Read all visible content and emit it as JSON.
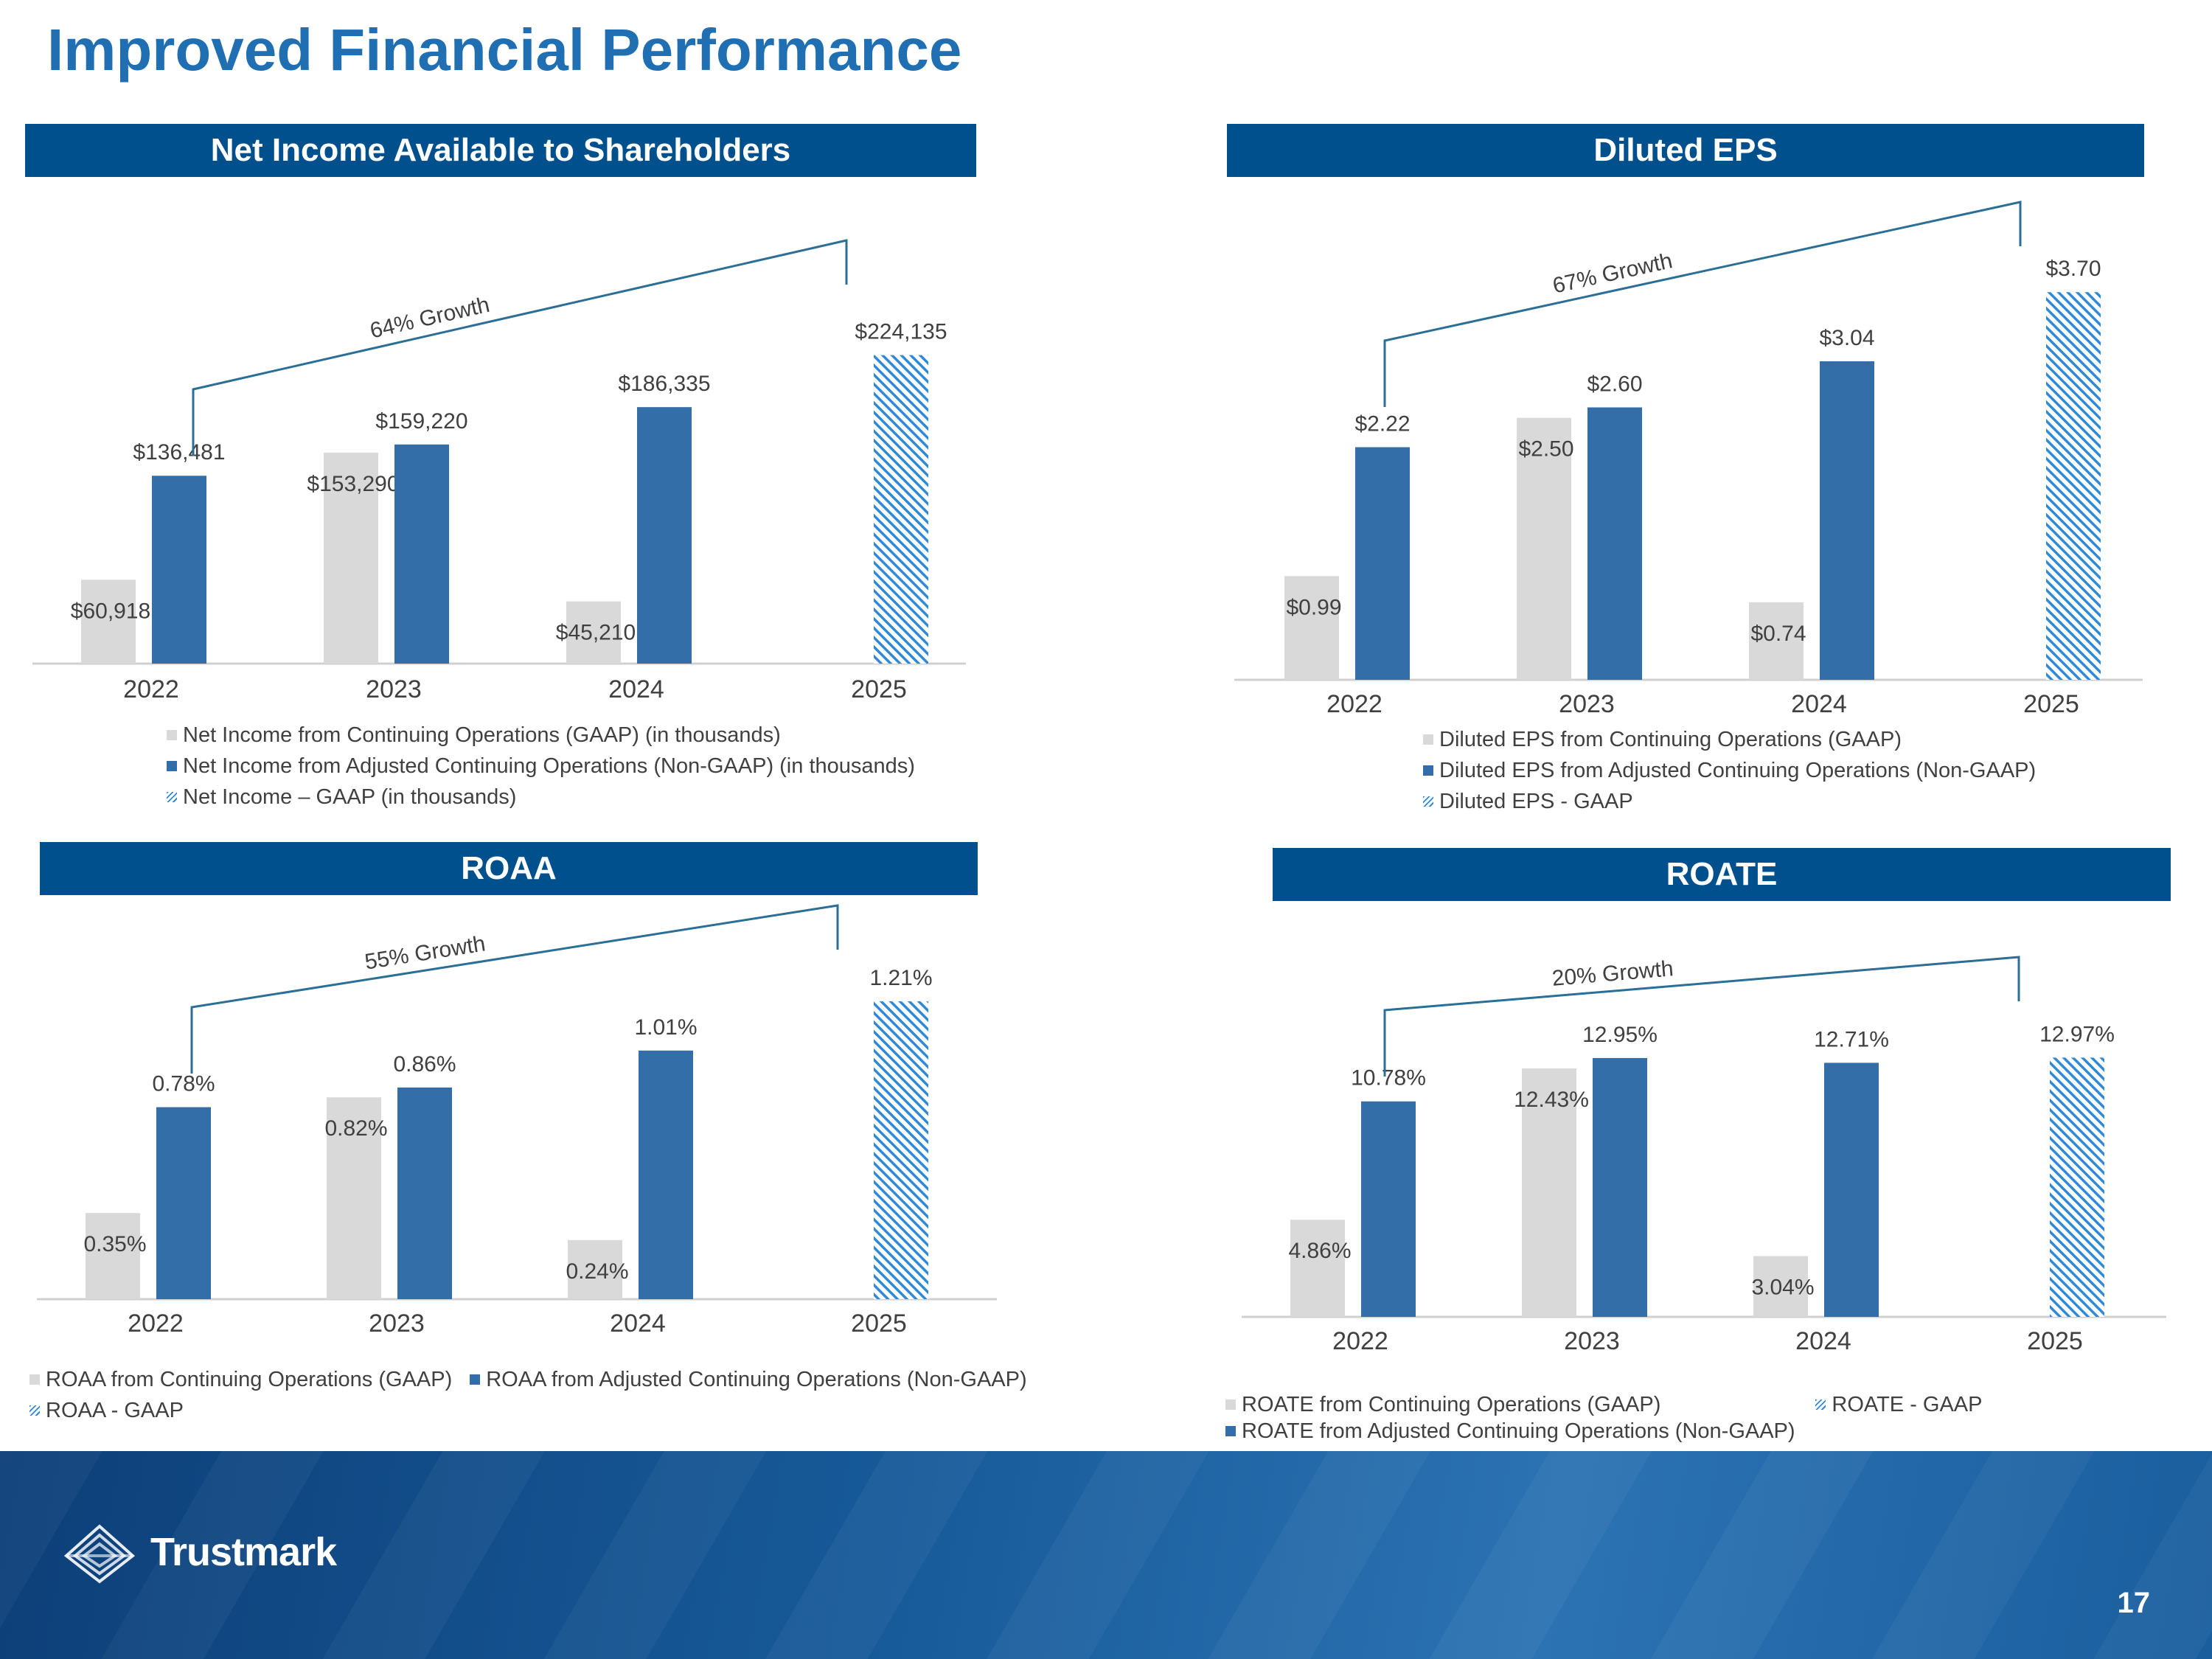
{
  "page": {
    "title": "Improved Financial Performance",
    "page_number": "17",
    "logo_text": "Trustmark"
  },
  "colors": {
    "header": "#00508e",
    "gaap": "#d9d9d9",
    "non_gaap": "#336ea8",
    "hatch": "#2e8ad8",
    "growth_line": "#2b6f96"
  },
  "chart_data": [
    {
      "type": "bar",
      "title": "Net Income Available to Shareholders",
      "categories": [
        "2022",
        "2023",
        "2024",
        "2025"
      ],
      "growth_label": "64% Growth",
      "ylim": [
        0,
        240000
      ],
      "series": [
        {
          "name": "Net Income from Continuing Operations (GAAP) (in thousands)",
          "style": "grey",
          "values": [
            60918,
            153290,
            45210,
            null
          ],
          "labels": [
            "$60,918",
            "$153,290",
            "$45,210",
            null
          ]
        },
        {
          "name": "Net Income from Adjusted Continuing Operations (Non-GAAP) (in thousands)",
          "style": "blue",
          "values": [
            136481,
            159220,
            186335,
            null
          ],
          "labels": [
            "$136,481",
            "$159,220",
            "$186,335",
            null
          ]
        },
        {
          "name": "Net Income – GAAP (in thousands)",
          "style": "hatch",
          "values": [
            null,
            null,
            null,
            224135
          ],
          "labels": [
            null,
            null,
            null,
            "$224,135"
          ]
        }
      ]
    },
    {
      "type": "bar",
      "title": "Diluted EPS",
      "categories": [
        "2022",
        "2023",
        "2024",
        "2025"
      ],
      "growth_label": "67% Growth",
      "ylim": [
        0,
        3.8
      ],
      "series": [
        {
          "name": "Diluted EPS from Continuing Operations (GAAP)",
          "style": "grey",
          "values": [
            0.99,
            2.5,
            0.74,
            null
          ],
          "labels": [
            "$0.99",
            "$2.50",
            "$0.74",
            null
          ]
        },
        {
          "name": "Diluted EPS from Adjusted Continuing Operations (Non-GAAP)",
          "style": "blue",
          "values": [
            2.22,
            2.6,
            3.04,
            null
          ],
          "labels": [
            "$2.22",
            "$2.60",
            "$3.04",
            null
          ]
        },
        {
          "name": "Diluted EPS - GAAP",
          "style": "hatch",
          "values": [
            null,
            null,
            null,
            3.7
          ],
          "labels": [
            null,
            null,
            null,
            "$3.70"
          ]
        }
      ]
    },
    {
      "type": "bar",
      "title": "ROAA",
      "categories": [
        "2022",
        "2023",
        "2024",
        "2025"
      ],
      "growth_label": "55% Growth",
      "ylim": [
        0,
        1.3
      ],
      "series": [
        {
          "name": "ROAA from Continuing Operations (GAAP)",
          "style": "grey",
          "values": [
            0.35,
            0.82,
            0.24,
            null
          ],
          "labels": [
            "0.35%",
            "0.82%",
            "0.24%",
            null
          ]
        },
        {
          "name": "ROAA from Adjusted Continuing Operations (Non-GAAP)",
          "style": "blue",
          "values": [
            0.78,
            0.86,
            1.01,
            null
          ],
          "labels": [
            "0.78%",
            "0.86%",
            "1.01%",
            null
          ]
        },
        {
          "name": "ROAA - GAAP",
          "style": "hatch",
          "values": [
            null,
            null,
            null,
            1.21
          ],
          "labels": [
            null,
            null,
            null,
            "1.21%"
          ]
        }
      ]
    },
    {
      "type": "bar",
      "title": "ROATE",
      "categories": [
        "2022",
        "2023",
        "2024",
        "2025"
      ],
      "growth_label": "20% Growth",
      "ylim": [
        0,
        13.5
      ],
      "series": [
        {
          "name": "ROATE from Continuing Operations (GAAP)",
          "style": "grey",
          "values": [
            4.86,
            12.43,
            3.04,
            null
          ],
          "labels": [
            "4.86%",
            "12.43%",
            "3.04%",
            null
          ]
        },
        {
          "name": "ROATE from Adjusted Continuing Operations (Non-GAAP)",
          "style": "blue",
          "values": [
            10.78,
            12.95,
            12.71,
            null
          ],
          "labels": [
            "10.78%",
            "12.95%",
            "12.71%",
            null
          ]
        },
        {
          "name": "ROATE - GAAP",
          "style": "hatch",
          "values": [
            null,
            null,
            null,
            12.97
          ],
          "labels": [
            null,
            null,
            null,
            "12.97%"
          ]
        }
      ]
    }
  ]
}
